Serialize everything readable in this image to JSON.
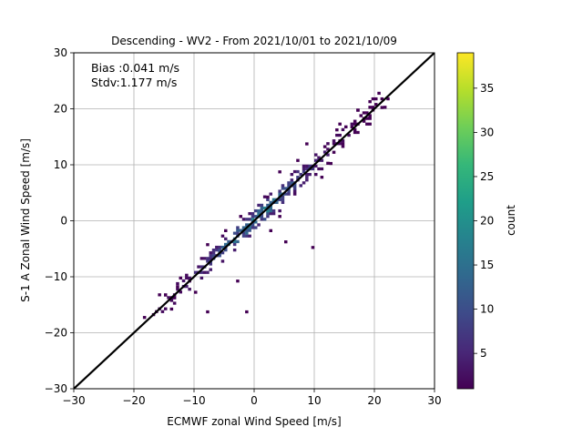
{
  "chart_data": {
    "type": "heatmap",
    "title": "Descending - WV2 - From 2021/10/01 to 2021/10/09",
    "xlabel": "ECMWF zonal Wind Speed [m/s]",
    "ylabel": "S-1 A Zonal Wind Speed [m/s]",
    "xlim": [
      -30,
      30
    ],
    "ylim": [
      -30,
      30
    ],
    "xticks": [
      -30,
      -20,
      -10,
      0,
      10,
      20,
      30
    ],
    "yticks": [
      -30,
      -20,
      -10,
      0,
      10,
      20,
      30
    ],
    "grid": true,
    "annotations": [
      "Bias :0.041 m/s",
      "Stdv:1.177 m/s"
    ],
    "reference_line": {
      "x": [
        -30,
        30
      ],
      "y": [
        -30,
        30
      ]
    },
    "colorbar": {
      "label": "count",
      "colormap": "viridis",
      "range": [
        1,
        39
      ],
      "ticks": [
        5,
        10,
        15,
        20,
        25,
        30,
        35
      ]
    },
    "density_band": {
      "x_range": [
        -17,
        22
      ],
      "spread_std": 1.177,
      "bias": 0.041,
      "peak_count": 20
    },
    "outliers": [
      [
        -17,
        -17
      ],
      [
        -18.5,
        -17.5
      ],
      [
        -14,
        -16
      ],
      [
        -13.5,
        -14
      ],
      [
        -8,
        -16.5
      ],
      [
        -13,
        -12
      ],
      [
        -11,
        -11
      ],
      [
        -3,
        -11
      ],
      [
        -1.5,
        -16.5
      ],
      [
        2.5,
        -2
      ],
      [
        5,
        -4
      ],
      [
        9.5,
        -5
      ],
      [
        11.5,
        13
      ],
      [
        13,
        12
      ],
      [
        13.5,
        16
      ],
      [
        12.5,
        10
      ],
      [
        17,
        19.5
      ],
      [
        21,
        20
      ],
      [
        -5,
        -2
      ],
      [
        2,
        4
      ],
      [
        -8,
        -4.5
      ],
      [
        4,
        8.5
      ],
      [
        8.5,
        13.5
      ],
      [
        -10,
        -13
      ],
      [
        -15,
        -13.5
      ]
    ]
  },
  "colors": {
    "viridis": [
      "#440154",
      "#482878",
      "#3e4a89",
      "#31688e",
      "#26828e",
      "#1f9e89",
      "#35b779",
      "#6ece58",
      "#b5de2b",
      "#fde725"
    ],
    "grid": "#b0b0b0",
    "line": "#000000"
  }
}
